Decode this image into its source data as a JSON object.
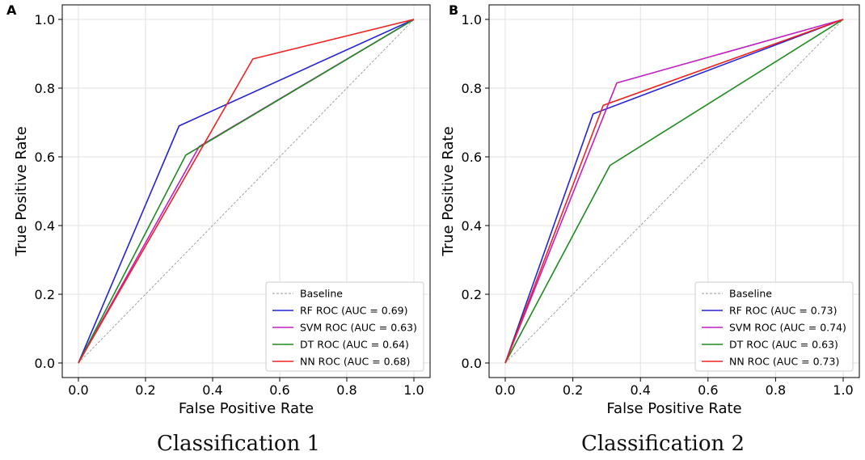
{
  "colors": {
    "baseline": "#999999",
    "rf": "#2424d6",
    "svm": "#c21fc2",
    "dt": "#1f8a1f",
    "nn": "#ee2222",
    "grid": "#e0e0e0",
    "axis": "#000000"
  },
  "chart_data": [
    {
      "type": "line",
      "panel_label": "A",
      "caption": "Classification 1",
      "xlabel": "False Positive Rate",
      "ylabel": "True Positive Rate",
      "xlim": [
        0.0,
        1.0
      ],
      "ylim": [
        0.0,
        1.0
      ],
      "xticks": [
        "0.0",
        "0.2",
        "0.4",
        "0.6",
        "0.8",
        "1.0"
      ],
      "yticks": [
        "0.0",
        "0.2",
        "0.4",
        "0.6",
        "0.8",
        "1.0"
      ],
      "grid": true,
      "legend_position": "bottom-right",
      "series": [
        {
          "key": "baseline",
          "name": "Baseline",
          "style": "dashed",
          "x": [
            0,
            1
          ],
          "y": [
            0,
            1
          ]
        },
        {
          "key": "rf",
          "name": "RF ROC (AUC = 0.69)",
          "x": [
            0,
            0.3,
            1
          ],
          "y": [
            0,
            0.69,
            1
          ]
        },
        {
          "key": "svm",
          "name": "SVM ROC (AUC = 0.63)",
          "x": [
            0,
            0.36,
            1
          ],
          "y": [
            0,
            0.63,
            1
          ]
        },
        {
          "key": "dt",
          "name": "DT ROC (AUC = 0.64)",
          "x": [
            0,
            0.32,
            1
          ],
          "y": [
            0,
            0.605,
            1
          ]
        },
        {
          "key": "nn",
          "name": "NN ROC (AUC = 0.68)",
          "x": [
            0,
            0.52,
            1
          ],
          "y": [
            0,
            0.885,
            1
          ]
        }
      ]
    },
    {
      "type": "line",
      "panel_label": "B",
      "caption": "Classification 2",
      "xlabel": "False Positive Rate",
      "ylabel": "True Positive Rate",
      "xlim": [
        0.0,
        1.0
      ],
      "ylim": [
        0.0,
        1.0
      ],
      "xticks": [
        "0.0",
        "0.2",
        "0.4",
        "0.6",
        "0.8",
        "1.0"
      ],
      "yticks": [
        "0.0",
        "0.2",
        "0.4",
        "0.6",
        "0.8",
        "1.0"
      ],
      "grid": true,
      "legend_position": "bottom-right",
      "series": [
        {
          "key": "baseline",
          "name": "Baseline",
          "style": "dashed",
          "x": [
            0,
            1
          ],
          "y": [
            0,
            1
          ]
        },
        {
          "key": "rf",
          "name": "RF ROC (AUC = 0.73)",
          "x": [
            0,
            0.26,
            1
          ],
          "y": [
            0,
            0.725,
            1
          ]
        },
        {
          "key": "svm",
          "name": "SVM ROC (AUC = 0.74)",
          "x": [
            0,
            0.33,
            1
          ],
          "y": [
            0,
            0.815,
            1
          ]
        },
        {
          "key": "dt",
          "name": "DT ROC (AUC = 0.63)",
          "x": [
            0,
            0.31,
            1
          ],
          "y": [
            0,
            0.575,
            1
          ]
        },
        {
          "key": "nn",
          "name": "NN ROC (AUC = 0.73)",
          "x": [
            0,
            0.29,
            1
          ],
          "y": [
            0,
            0.75,
            1
          ]
        }
      ]
    }
  ]
}
